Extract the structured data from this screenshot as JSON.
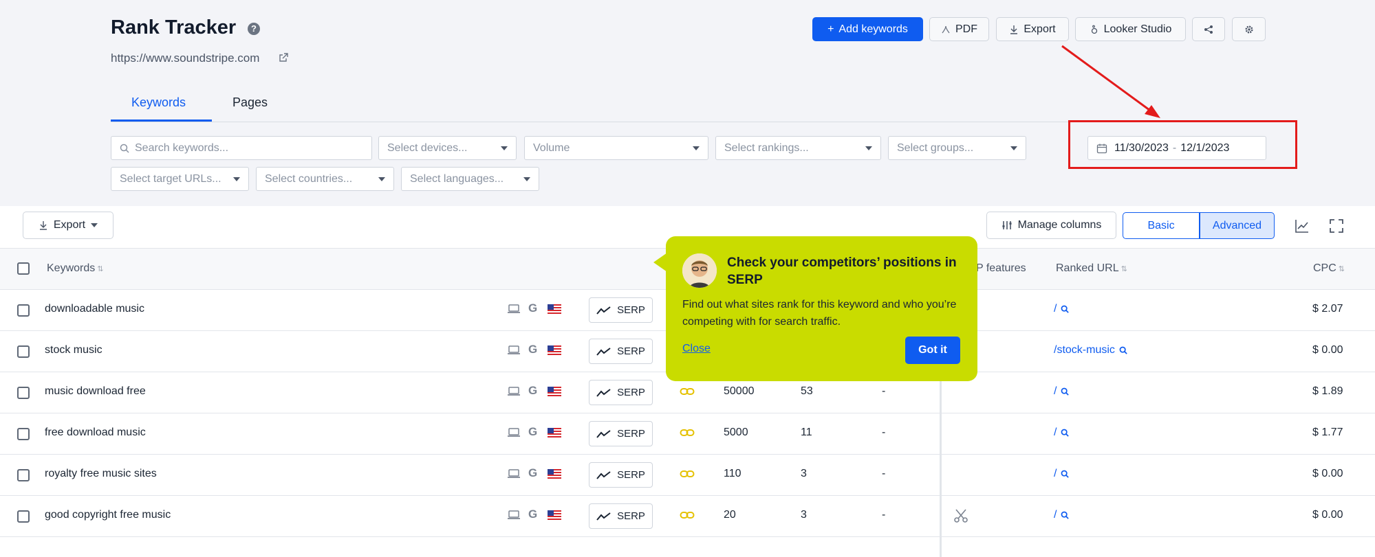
{
  "header": {
    "title": "Rank Tracker",
    "help_icon": "?",
    "site_url": "https://www.soundstripe.com"
  },
  "toolbar_top": {
    "add_keywords": "Add keywords",
    "add_keywords_plus": "+",
    "pdf": "PDF",
    "export": "Export",
    "looker": "Looker Studio"
  },
  "tabs": [
    {
      "label": "Keywords",
      "active": true
    },
    {
      "label": "Pages",
      "active": false
    }
  ],
  "filters": {
    "search_placeholder": "Search keywords...",
    "devices": "Select devices...",
    "volume": "Volume",
    "rankings": "Select rankings...",
    "groups": "Select groups...",
    "target_urls": "Select target URLs...",
    "countries": "Select countries...",
    "languages": "Select languages..."
  },
  "date_range": {
    "start": "11/30/2023",
    "separator": "-",
    "end": "12/1/2023"
  },
  "table_toolbar": {
    "export": "Export",
    "manage_columns": "Manage columns",
    "basic": "Basic",
    "advanced": "Advanced"
  },
  "columns": {
    "keywords": "Keywords",
    "serp_features": "P features",
    "ranked_url": "Ranked URL",
    "cpc": "CPC"
  },
  "serp_label": "SERP",
  "rows": [
    {
      "keyword": "downloadable music",
      "volume": "",
      "position": "",
      "change": "",
      "url": "/",
      "cpc": "$ 2.07"
    },
    {
      "keyword": "stock music",
      "volume": "",
      "position": "",
      "change": "",
      "url": "/stock-music",
      "cpc": "$ 0.00"
    },
    {
      "keyword": "music download free",
      "volume": "50000",
      "position": "53",
      "change": "-",
      "url": "/",
      "cpc": "$ 1.89"
    },
    {
      "keyword": "free download music",
      "volume": "5000",
      "position": "11",
      "change": "-",
      "url": "/",
      "cpc": "$ 1.77"
    },
    {
      "keyword": "royalty free music sites",
      "volume": "110",
      "position": "3",
      "change": "-",
      "url": "/",
      "cpc": "$ 0.00"
    },
    {
      "keyword": "good copyright free music",
      "volume": "20",
      "position": "3",
      "change": "-",
      "url": "/",
      "cpc": "$ 0.00"
    }
  ],
  "popover": {
    "title": "Check your competitors’ positions in SERP",
    "body": "Find out what sites rank for this keyword and who you’re competing with for search traffic.",
    "close": "Close",
    "got_it": "Got it"
  },
  "colors": {
    "accent": "#0f5cf0",
    "popover": "#c9dc00",
    "annotation": "#e31b1b"
  }
}
